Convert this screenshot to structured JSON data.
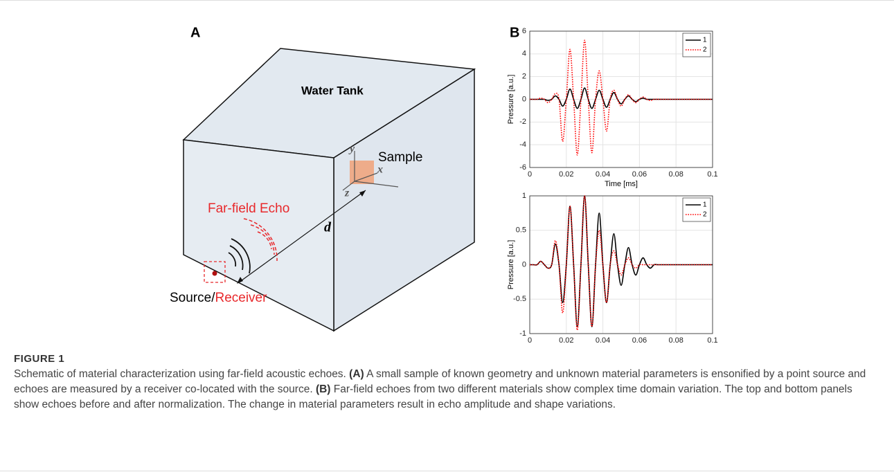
{
  "diagram": {
    "panel_a_label": "A",
    "panel_b_label": "B",
    "tank_label": "Water Tank",
    "sample_label": "Sample",
    "axis_y": "y",
    "axis_x": "x",
    "axis_z": "z",
    "distance_label": "d",
    "echo_label": "Far-field Echo",
    "source_label": "Source/",
    "receiver_label": "Receiver"
  },
  "caption": {
    "label": "FIGURE 1",
    "text_1": "Schematic of material characterization using far-field acoustic echoes. ",
    "marker_a": "(A)",
    "text_2": " A small sample of known geometry and unknown material parameters is ensonified by a point source and echoes are measured by a receiver co-located with the source. ",
    "marker_b": "(B)",
    "text_3": " Far-field echoes from two different materials show complex time domain variation. The top and bottom panels show echoes before and after normalization. The change in material parameters result in echo amplitude and shape variations."
  },
  "chart_data": [
    {
      "type": "line",
      "xlabel": "Time [ms]",
      "ylabel": "Pressure [a.u.]",
      "xlim": [
        0,
        0.1
      ],
      "xticks": [
        0,
        0.02,
        0.04,
        0.06,
        0.08,
        0.1
      ],
      "ylim": [
        -6,
        6
      ],
      "yticks": [
        -6,
        -4,
        -2,
        0,
        2,
        4,
        6
      ],
      "grid": true,
      "legend": "upper right",
      "x": [
        0,
        0.002,
        0.004,
        0.006,
        0.008,
        0.01,
        0.012,
        0.014,
        0.016,
        0.018,
        0.02,
        0.022,
        0.024,
        0.026,
        0.028,
        0.03,
        0.032,
        0.034,
        0.036,
        0.038,
        0.04,
        0.042,
        0.044,
        0.046,
        0.048,
        0.05,
        0.052,
        0.054,
        0.056,
        0.058,
        0.06,
        0.062,
        0.064,
        0.066,
        0.068,
        0.07,
        0.072,
        0.074,
        0.076,
        0.078,
        0.08,
        0.082,
        0.084,
        0.086,
        0.088,
        0.09,
        0.092,
        0.094,
        0.096,
        0.098,
        0.1
      ],
      "series": [
        {
          "name": "1",
          "color": "#000000",
          "style": "solid",
          "values": [
            0,
            0,
            0,
            0,
            0,
            -0.1,
            0,
            0.3,
            0,
            -0.6,
            0,
            0.9,
            0,
            -0.8,
            0,
            1,
            0,
            -0.8,
            0,
            0.8,
            0,
            -0.7,
            0,
            0.6,
            0,
            -0.4,
            0,
            0.3,
            0,
            -0.2,
            0,
            0.1,
            0,
            0,
            0,
            0,
            0,
            0,
            0,
            0,
            0,
            0,
            0,
            0,
            0,
            0,
            0,
            0,
            0,
            0,
            0
          ]
        },
        {
          "name": "2",
          "color": "#ff0000",
          "style": "dotted",
          "values": [
            0,
            0,
            0,
            0.1,
            0,
            -0.3,
            0,
            0.5,
            0,
            -3.7,
            0,
            4.4,
            0,
            -4.9,
            0,
            5.2,
            0,
            -4.7,
            0,
            2.5,
            0,
            -2.8,
            0,
            0.8,
            0,
            -0.6,
            0,
            0.4,
            0,
            -0.3,
            0,
            0.2,
            0,
            -0.1,
            0,
            0,
            0,
            0,
            0,
            0,
            0,
            0,
            0,
            0,
            0,
            0,
            0,
            0,
            0,
            0,
            0
          ]
        }
      ]
    },
    {
      "type": "line",
      "xlabel": "Time [ms]",
      "ylabel": "Pressure [a.u.]",
      "xlim": [
        0,
        0.1
      ],
      "xticks": [
        0,
        0.02,
        0.04,
        0.06,
        0.08,
        0.1
      ],
      "ylim": [
        -1,
        1
      ],
      "yticks": [
        -1,
        -0.5,
        0,
        0.5,
        1
      ],
      "grid": true,
      "legend": "upper right",
      "x": [
        0,
        0.002,
        0.004,
        0.006,
        0.008,
        0.01,
        0.012,
        0.014,
        0.016,
        0.018,
        0.02,
        0.022,
        0.024,
        0.026,
        0.028,
        0.03,
        0.032,
        0.034,
        0.036,
        0.038,
        0.04,
        0.042,
        0.044,
        0.046,
        0.048,
        0.05,
        0.052,
        0.054,
        0.056,
        0.058,
        0.06,
        0.062,
        0.064,
        0.066,
        0.068,
        0.07,
        0.072,
        0.074,
        0.076,
        0.078,
        0.08,
        0.082,
        0.084,
        0.086,
        0.088,
        0.09,
        0.092,
        0.094,
        0.096,
        0.098,
        0.1
      ],
      "series": [
        {
          "name": "1",
          "color": "#000000",
          "style": "solid",
          "values": [
            0,
            0,
            0,
            0.05,
            0,
            -0.05,
            0,
            0.3,
            0,
            -0.55,
            0,
            0.85,
            0,
            -0.9,
            0,
            1,
            0,
            -0.9,
            0,
            0.75,
            0,
            -0.55,
            0,
            0.45,
            0,
            -0.3,
            0,
            0.25,
            0,
            -0.15,
            0,
            0.1,
            0,
            -0.05,
            0,
            0,
            0,
            0,
            0,
            0,
            0,
            0,
            0,
            0,
            0,
            0,
            0,
            0,
            0,
            0,
            0
          ]
        },
        {
          "name": "2",
          "color": "#ff0000",
          "style": "dotted",
          "values": [
            0,
            0,
            0,
            0.05,
            0,
            -0.05,
            0,
            0.35,
            0,
            -0.7,
            0,
            0.85,
            0,
            -0.95,
            0,
            1,
            0,
            -0.9,
            0,
            0.5,
            0,
            -0.55,
            0,
            0.2,
            0,
            -0.15,
            0,
            0.1,
            0,
            -0.05,
            0,
            0,
            0,
            0,
            0,
            0,
            0,
            0,
            0,
            0,
            0,
            0,
            0,
            0,
            0,
            0,
            0,
            0,
            0,
            0,
            0
          ]
        }
      ]
    }
  ]
}
